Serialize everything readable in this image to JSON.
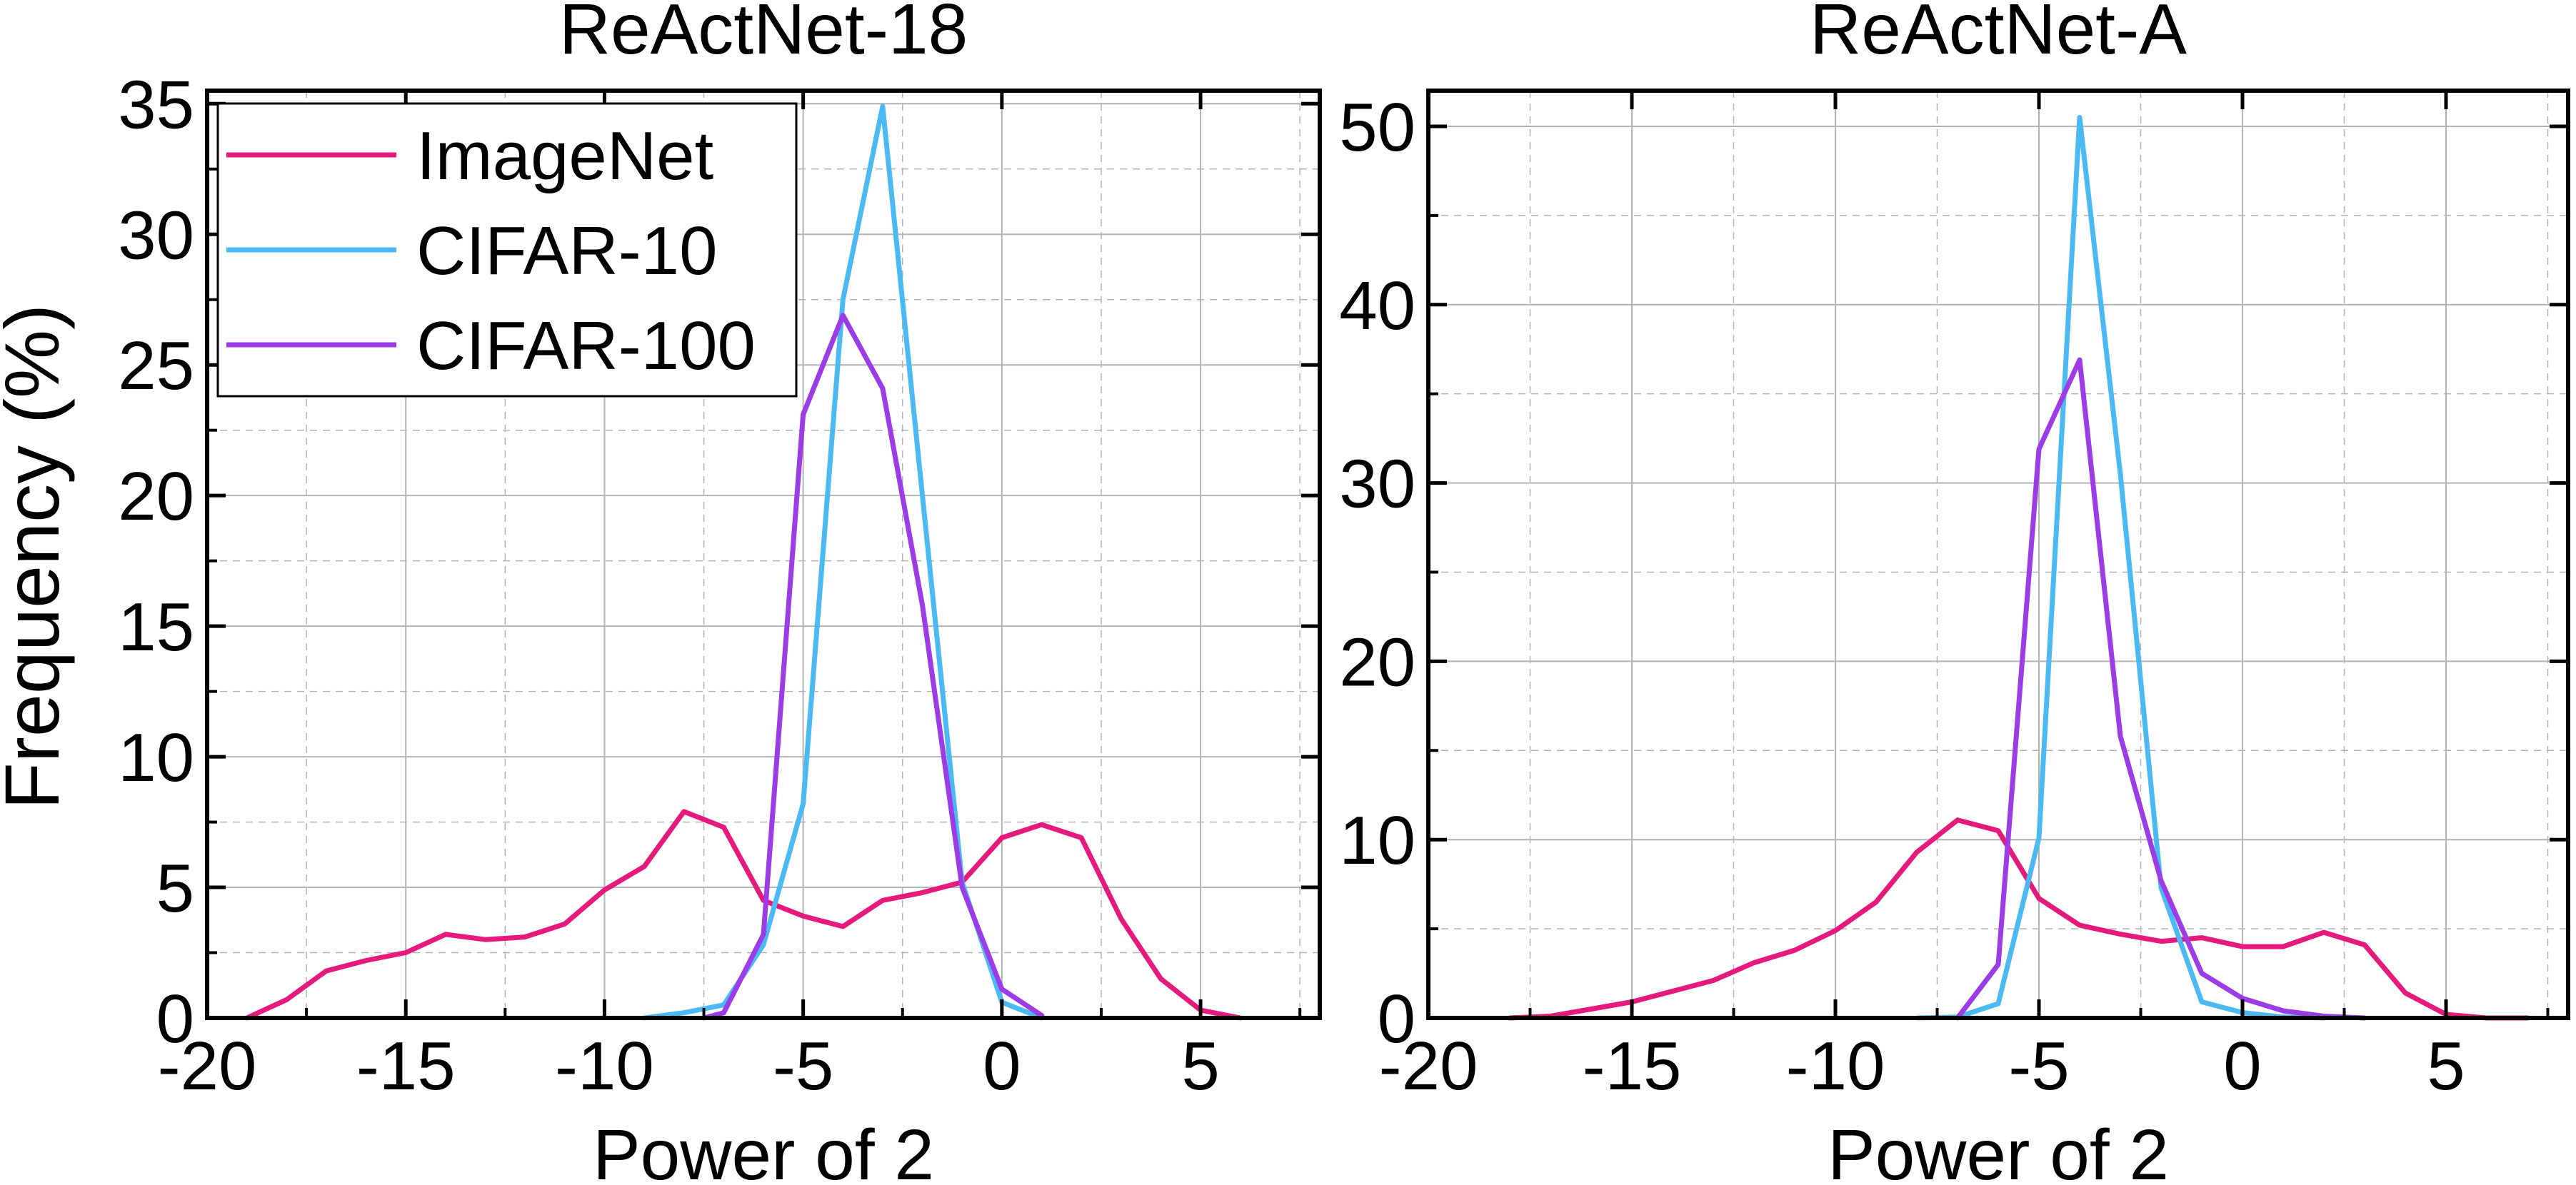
{
  "figure": {
    "shared_ylabel": "Frequency (%)"
  },
  "colors": {
    "imagenet": "#e6197d",
    "cifar10": "#4cbaf2",
    "cifar100": "#9b3ce6",
    "grid": "#b4b4b4",
    "axis": "#000000"
  },
  "legend": {
    "entries": [
      "ImageNet",
      "CIFAR-10",
      "CIFAR-100"
    ]
  },
  "chart_data": [
    {
      "type": "line",
      "title": "ReActNet-18",
      "xlabel": "Power of 2",
      "ylabel": "Frequency (%)",
      "xlim": [
        -20,
        8
      ],
      "ylim": [
        0,
        35.5
      ],
      "xticks": [
        -20,
        -15,
        -10,
        -5,
        0,
        5
      ],
      "yticks": [
        0,
        5,
        10,
        15,
        20,
        25,
        30,
        35
      ],
      "legend_position": "top-left",
      "grid": true,
      "series": [
        {
          "name": "ImageNet",
          "color": "#e6197d",
          "x": [
            -19,
            -18,
            -17,
            -16,
            -15,
            -14,
            -13,
            -12,
            -11,
            -10,
            -9,
            -8,
            -7,
            -6,
            -5,
            -4,
            -3,
            -2,
            -1,
            0,
            1,
            2,
            3,
            4,
            5,
            6
          ],
          "values": [
            0,
            0.7,
            1.8,
            2.2,
            2.5,
            3.2,
            3.0,
            3.1,
            3.6,
            4.9,
            5.8,
            7.9,
            7.3,
            4.5,
            3.9,
            3.5,
            4.5,
            4.8,
            5.2,
            6.9,
            7.4,
            6.9,
            3.8,
            1.5,
            0.3,
            0
          ]
        },
        {
          "name": "CIFAR-10",
          "color": "#4cbaf2",
          "x": [
            -9,
            -8,
            -7,
            -6,
            -5,
            -4,
            -3,
            -2,
            -1,
            0,
            1
          ],
          "values": [
            0,
            0.2,
            0.5,
            2.8,
            8.2,
            27.5,
            34.9,
            20.0,
            5.2,
            0.6,
            0
          ]
        },
        {
          "name": "CIFAR-100",
          "color": "#9b3ce6",
          "x": [
            -7.5,
            -7,
            -6,
            -5,
            -4,
            -3,
            -2,
            -1,
            0,
            1
          ],
          "values": [
            0,
            0.2,
            3.2,
            23.1,
            26.9,
            24.1,
            15.8,
            5.0,
            1.1,
            0.1
          ]
        }
      ]
    },
    {
      "type": "line",
      "title": "ReActNet-A",
      "xlabel": "Power of 2",
      "ylabel": "",
      "xlim": [
        -20,
        8
      ],
      "ylim": [
        0,
        52
      ],
      "xticks": [
        -20,
        -15,
        -10,
        -5,
        0,
        5
      ],
      "yticks": [
        0,
        10,
        20,
        30,
        40,
        50
      ],
      "grid": true,
      "series": [
        {
          "name": "ImageNet",
          "color": "#e6197d",
          "x": [
            -18,
            -17,
            -16,
            -15,
            -14,
            -13,
            -12,
            -11,
            -10,
            -9,
            -8,
            -7,
            -6,
            -5,
            -4,
            -3,
            -2,
            -1,
            0,
            1,
            2,
            3,
            4,
            5,
            6,
            7
          ],
          "values": [
            0,
            0.1,
            0.5,
            0.9,
            1.5,
            2.1,
            3.1,
            3.8,
            4.9,
            6.5,
            9.3,
            11.1,
            10.5,
            6.7,
            5.2,
            4.7,
            4.3,
            4.5,
            4.0,
            4.0,
            4.8,
            4.1,
            1.4,
            0.2,
            0,
            0
          ]
        },
        {
          "name": "CIFAR-10",
          "color": "#4cbaf2",
          "x": [
            -8,
            -7,
            -6,
            -5,
            -4,
            -3,
            -2,
            -1,
            0,
            1,
            2
          ],
          "values": [
            0,
            0.05,
            0.8,
            10.1,
            50.5,
            30.5,
            7.3,
            0.9,
            0.3,
            0.05,
            0
          ]
        },
        {
          "name": "CIFAR-100",
          "color": "#9b3ce6",
          "x": [
            -7,
            -6,
            -5,
            -4,
            -3,
            -2,
            -1,
            0,
            1,
            2,
            3
          ],
          "values": [
            0,
            3.0,
            31.9,
            36.9,
            15.8,
            7.7,
            2.5,
            1.1,
            0.4,
            0.1,
            0
          ]
        }
      ]
    }
  ]
}
